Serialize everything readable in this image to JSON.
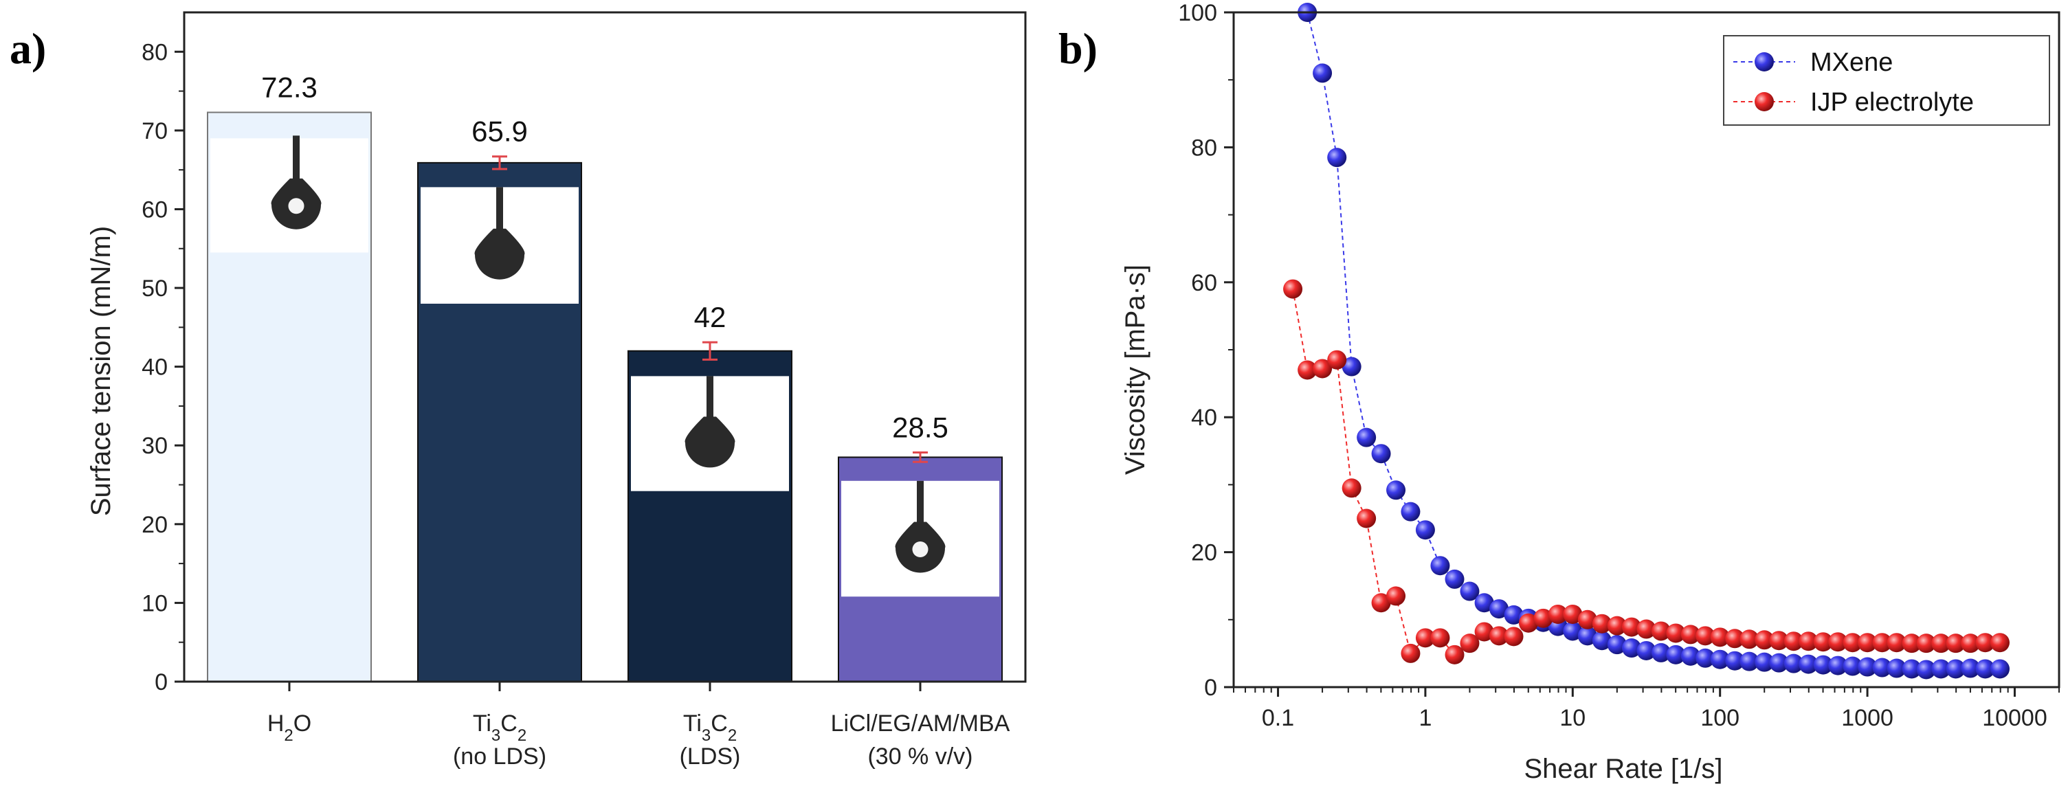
{
  "panel_a": {
    "label": "a)",
    "subscript_2": "2",
    "subscript_3": "3",
    "chart_data": {
      "type": "bar",
      "title": "",
      "ylabel": "Surface tension (mN/m)",
      "xlabel": "",
      "ylim": [
        0,
        85
      ],
      "yticks": [
        0,
        10,
        20,
        30,
        40,
        50,
        60,
        70,
        80
      ],
      "categories": [
        {
          "main": "H",
          "sub": "2",
          "tail": "O",
          "line2": ""
        },
        {
          "main": "Ti",
          "sub": "3",
          "main2": "C",
          "sub2": "2",
          "line2": "(no LDS)"
        },
        {
          "main": "Ti",
          "sub": "3",
          "main2": "C",
          "sub2": "2",
          "line2": "(LDS)"
        },
        {
          "main": "LiCl/EG/AM/MBA",
          "line2": "(30 % v/v)"
        }
      ],
      "values": [
        72.3,
        65.9,
        42,
        28.5
      ],
      "value_labels": [
        "72.3",
        "65.9",
        "42",
        "28.5"
      ],
      "errors": [
        0,
        0.8,
        1.1,
        0.6
      ],
      "colors": [
        "#eaf3fd",
        "#1e3656",
        "#122641",
        "#6a5fb9"
      ],
      "inset_images": [
        "pendant droplet",
        "pendant droplet",
        "pendant droplet",
        "pendant droplet"
      ]
    }
  },
  "panel_b": {
    "label": "b)",
    "chart_data": {
      "type": "scatter",
      "title": "",
      "xlabel": "Shear Rate [1/s]",
      "ylabel": "Viscosity [mPa·s]",
      "xscale": "log",
      "xlim": [
        0.05,
        20000
      ],
      "ylim": [
        0,
        100
      ],
      "yticks": [
        0,
        20,
        40,
        60,
        80,
        100
      ],
      "xticks": [
        0.1,
        1,
        10,
        100,
        1000,
        10000
      ],
      "xtick_labels": [
        "0.1",
        "1",
        "10",
        "100",
        "1000",
        "10000"
      ],
      "legend_position": "top-right",
      "series": [
        {
          "name": "MXene",
          "color": "#3a3ae8",
          "points": [
            [
              0.158,
              100.0
            ],
            [
              0.2,
              91.0
            ],
            [
              0.251,
              78.5
            ],
            [
              0.316,
              47.5
            ],
            [
              0.398,
              37.0
            ],
            [
              0.501,
              34.6
            ],
            [
              0.631,
              29.2
            ],
            [
              0.794,
              26.0
            ],
            [
              1.0,
              23.3
            ],
            [
              1.26,
              18.0
            ],
            [
              1.58,
              16.0
            ],
            [
              2.0,
              14.2
            ],
            [
              2.51,
              12.5
            ],
            [
              3.16,
              11.6
            ],
            [
              3.98,
              10.7
            ],
            [
              5.01,
              10.2
            ],
            [
              6.31,
              9.6
            ],
            [
              7.94,
              9.0
            ],
            [
              10.0,
              8.3
            ],
            [
              12.6,
              7.6
            ],
            [
              15.8,
              6.9
            ],
            [
              20.0,
              6.3
            ],
            [
              25.1,
              5.8
            ],
            [
              31.6,
              5.4
            ],
            [
              39.8,
              5.1
            ],
            [
              50.1,
              4.8
            ],
            [
              63.1,
              4.6
            ],
            [
              79.4,
              4.3
            ],
            [
              100,
              4.1
            ],
            [
              126,
              3.9
            ],
            [
              158,
              3.8
            ],
            [
              200,
              3.7
            ],
            [
              251,
              3.6
            ],
            [
              316,
              3.5
            ],
            [
              398,
              3.4
            ],
            [
              501,
              3.3
            ],
            [
              631,
              3.2
            ],
            [
              794,
              3.1
            ],
            [
              1000,
              3.0
            ],
            [
              1260,
              2.9
            ],
            [
              1580,
              2.8
            ],
            [
              2000,
              2.7
            ],
            [
              2510,
              2.6
            ],
            [
              3160,
              2.7
            ],
            [
              3980,
              2.7
            ],
            [
              5010,
              2.8
            ],
            [
              6310,
              2.7
            ],
            [
              7940,
              2.7
            ]
          ]
        },
        {
          "name": "IJP electrolyte",
          "color": "#ef2b2b",
          "points": [
            [
              0.126,
              59.0
            ],
            [
              0.158,
              47.0
            ],
            [
              0.2,
              47.2
            ],
            [
              0.251,
              48.5
            ],
            [
              0.316,
              29.5
            ],
            [
              0.398,
              25.0
            ],
            [
              0.501,
              12.5
            ],
            [
              0.631,
              13.5
            ],
            [
              0.794,
              5.0
            ],
            [
              1.0,
              7.3
            ],
            [
              1.26,
              7.3
            ],
            [
              1.58,
              4.8
            ],
            [
              2.0,
              6.5
            ],
            [
              2.51,
              8.2
            ],
            [
              3.16,
              7.6
            ],
            [
              3.98,
              7.5
            ],
            [
              5.01,
              9.5
            ],
            [
              6.31,
              10.2
            ],
            [
              7.94,
              10.8
            ],
            [
              10.0,
              10.8
            ],
            [
              12.6,
              10.0
            ],
            [
              15.8,
              9.4
            ],
            [
              20.0,
              9.1
            ],
            [
              25.1,
              8.9
            ],
            [
              31.6,
              8.6
            ],
            [
              39.8,
              8.3
            ],
            [
              50.1,
              8.0
            ],
            [
              63.1,
              7.8
            ],
            [
              79.4,
              7.6
            ],
            [
              100,
              7.4
            ],
            [
              126,
              7.2
            ],
            [
              158,
              7.1
            ],
            [
              200,
              7.0
            ],
            [
              251,
              6.9
            ],
            [
              316,
              6.8
            ],
            [
              398,
              6.8
            ],
            [
              501,
              6.7
            ],
            [
              631,
              6.7
            ],
            [
              794,
              6.6
            ],
            [
              1000,
              6.6
            ],
            [
              1260,
              6.6
            ],
            [
              1580,
              6.6
            ],
            [
              2000,
              6.5
            ],
            [
              2510,
              6.5
            ],
            [
              3160,
              6.5
            ],
            [
              3980,
              6.5
            ],
            [
              5010,
              6.5
            ],
            [
              6310,
              6.6
            ],
            [
              7940,
              6.6
            ]
          ]
        }
      ]
    }
  }
}
